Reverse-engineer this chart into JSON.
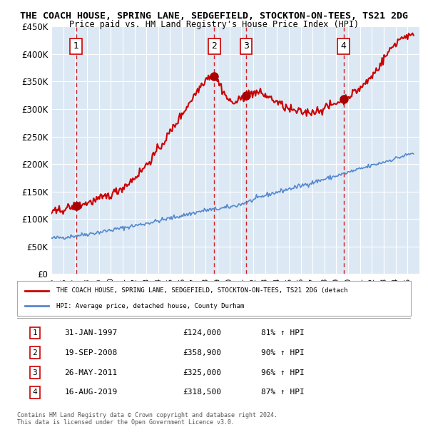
{
  "title": "THE COACH HOUSE, SPRING LANE, SEDGEFIELD, STOCKTON-ON-TEES, TS21 2DG",
  "subtitle": "Price paid vs. HM Land Registry's House Price Index (HPI)",
  "bg_color": "#dce9f5",
  "plot_bg_color": "#dce9f5",
  "ylim": [
    0,
    450000
  ],
  "yticks": [
    0,
    50000,
    100000,
    150000,
    200000,
    250000,
    300000,
    350000,
    400000,
    450000
  ],
  "ytick_labels": [
    "£0",
    "£50K",
    "£100K",
    "£150K",
    "£200K",
    "£250K",
    "£300K",
    "£350K",
    "£400K",
    "£450K"
  ],
  "xlim_start": 1995.0,
  "xlim_end": 2026.0,
  "sale_points": [
    {
      "num": 1,
      "year": 1997.08,
      "price": 124000,
      "label": "31-JAN-1997",
      "price_label": "£124,000",
      "pct": "81% ↑ HPI"
    },
    {
      "num": 2,
      "year": 2008.72,
      "price": 358900,
      "label": "19-SEP-2008",
      "price_label": "£358,900",
      "pct": "90% ↑ HPI"
    },
    {
      "num": 3,
      "year": 2011.4,
      "price": 325000,
      "label": "26-MAY-2011",
      "price_label": "£325,000",
      "pct": "96% ↑ HPI"
    },
    {
      "num": 4,
      "year": 2019.62,
      "price": 318500,
      "label": "16-AUG-2019",
      "price_label": "£318,500",
      "pct": "87% ↑ HPI"
    }
  ],
  "red_line_color": "#cc0000",
  "blue_line_color": "#5588cc",
  "marker_color": "#aa0000",
  "dashed_line_color": "#cc0000",
  "legend_label_red": "THE COACH HOUSE, SPRING LANE, SEDGEFIELD, STOCKTON-ON-TEES, TS21 2DG (detach",
  "legend_label_blue": "HPI: Average price, detached house, County Durham",
  "footer": "Contains HM Land Registry data © Crown copyright and database right 2024.\nThis data is licensed under the Open Government Licence v3.0.",
  "table_rows": [
    [
      "1",
      "31-JAN-1997",
      "£124,000",
      "81% ↑ HPI"
    ],
    [
      "2",
      "19-SEP-2008",
      "£358,900",
      "90% ↑ HPI"
    ],
    [
      "3",
      "26-MAY-2011",
      "£325,000",
      "96% ↑ HPI"
    ],
    [
      "4",
      "16-AUG-2019",
      "£318,500",
      "87% ↑ HPI"
    ]
  ]
}
